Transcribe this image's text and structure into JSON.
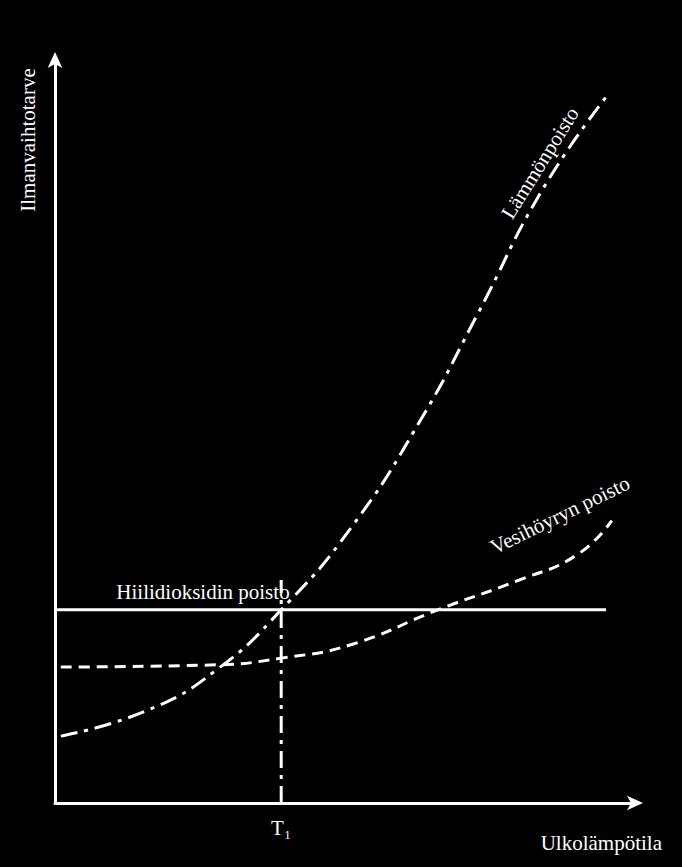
{
  "chart_data": {
    "type": "line",
    "x_label": "Ulkolämpötila",
    "y_label": "Ilmanvaihtotarve",
    "xlim": [
      0,
      100
    ],
    "ylim": [
      0,
      100
    ],
    "xticks": [
      {
        "value": 39,
        "label": "T₁"
      }
    ],
    "tick_labels": "x",
    "grid": false,
    "series": [
      {
        "name": "Hiilidioksidin poisto",
        "color": "#ffffff",
        "line_style": "solid",
        "x": [
          0,
          95
        ],
        "values": [
          26,
          26
        ]
      },
      {
        "name": "Vesihöyryn poisto",
        "color": "#ffffff",
        "line_style": "dashed",
        "x": [
          1,
          28,
          39,
          51,
          66,
          80,
          90,
          96
        ],
        "values": [
          18.3,
          18.6,
          19.5,
          21.3,
          26,
          30,
          33.4,
          38
        ]
      },
      {
        "name": "Lämmönpoisto",
        "color": "#ffffff",
        "line_style": "dashdot",
        "x": [
          1,
          16,
          28,
          39,
          51,
          63,
          73,
          84,
          95
        ],
        "values": [
          9,
          12.5,
          18,
          26,
          37,
          51.5,
          66,
          82.5,
          95
        ]
      },
      {
        "color": "#ffffff",
        "line_style": "dashdot",
        "x": [
          39,
          39
        ],
        "values": [
          0,
          30
        ]
      }
    ]
  }
}
